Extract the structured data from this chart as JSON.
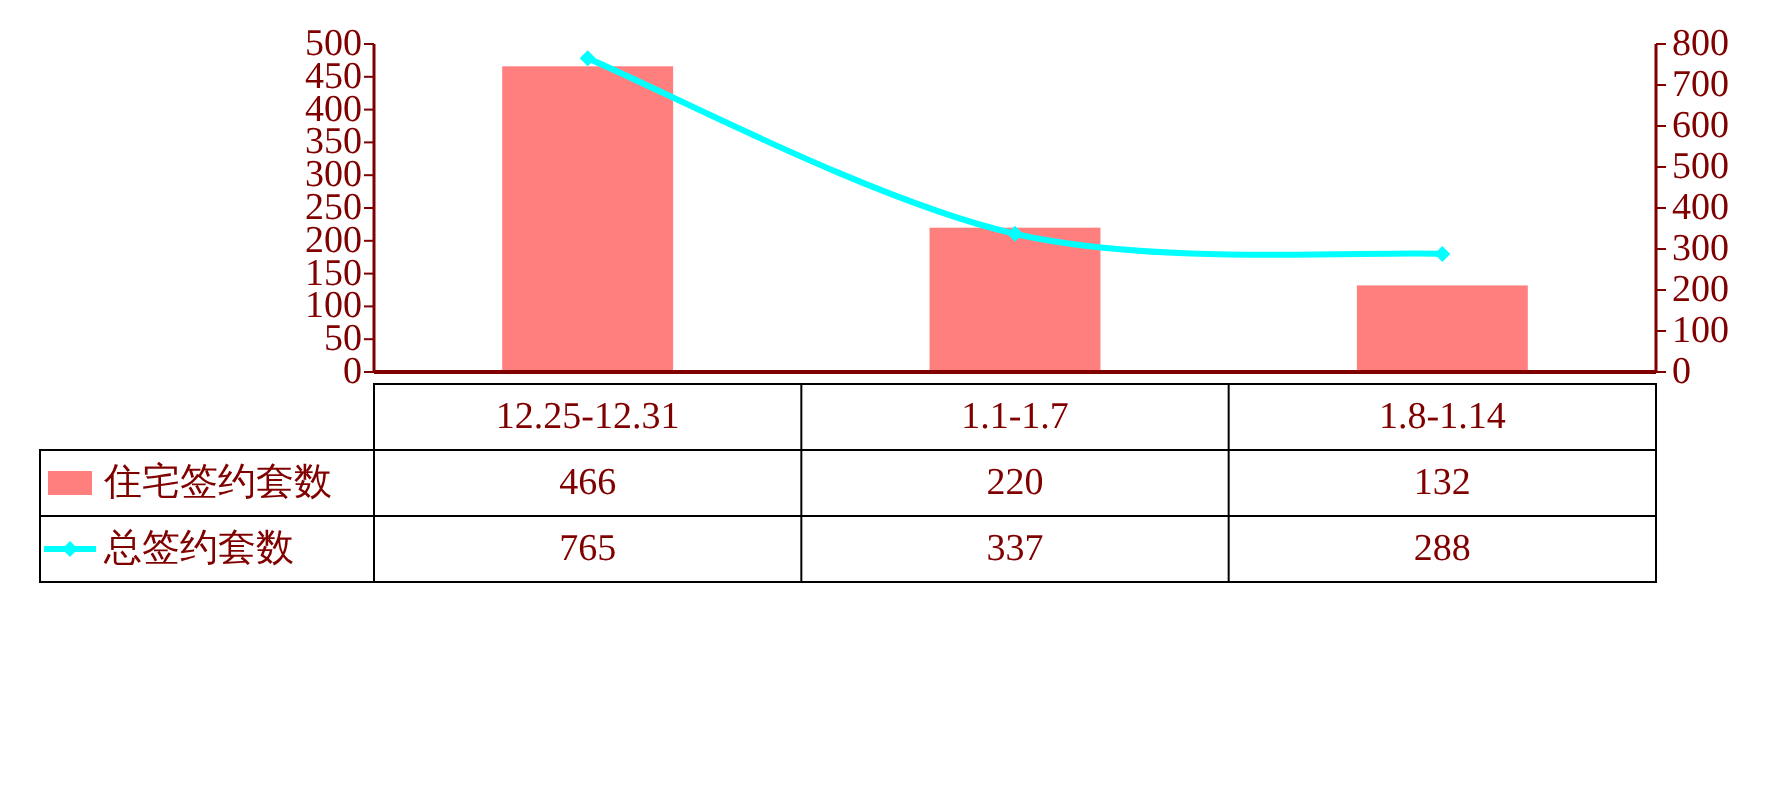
{
  "chart_data": {
    "type": "bar",
    "categories": [
      "12.25-12.31",
      "1.1-1.7",
      "1.8-1.14"
    ],
    "series": [
      {
        "name": "住宅签约套数",
        "color": "#ff7f7f",
        "values": [
          466,
          220,
          132
        ]
      },
      {
        "name": "总签约套数",
        "type": "line",
        "axis": "y2",
        "color": "#00ffff",
        "values": [
          765,
          337,
          288
        ]
      }
    ],
    "ylim": [
      0,
      500
    ],
    "yticks": [
      0,
      50,
      100,
      150,
      200,
      250,
      300,
      350,
      400,
      450,
      500
    ],
    "y2lim": [
      0,
      800
    ],
    "y2ticks": [
      0,
      100,
      200,
      300,
      400,
      500,
      600,
      700,
      800
    ],
    "marker": "diamond",
    "data_labels": true,
    "legend": "bottom left"
  }
}
